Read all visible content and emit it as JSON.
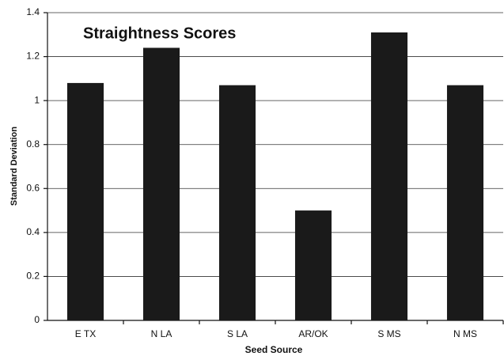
{
  "chart_data": {
    "type": "bar",
    "title": "Straightness Scores",
    "x_label": "Seed Source",
    "y_label": "Standard Deviation",
    "categories": [
      "E TX",
      "N LA",
      "S LA",
      "AR/OK",
      "S MS",
      "N MS"
    ],
    "values": [
      1.08,
      1.24,
      1.07,
      0.5,
      1.31,
      1.07
    ],
    "color": "#1a1a1a",
    "ylim": [
      0,
      1.4
    ],
    "yticks": [
      0,
      0.2,
      0.4,
      0.6,
      0.8,
      1,
      1.2,
      1.4
    ],
    "grid": true
  }
}
